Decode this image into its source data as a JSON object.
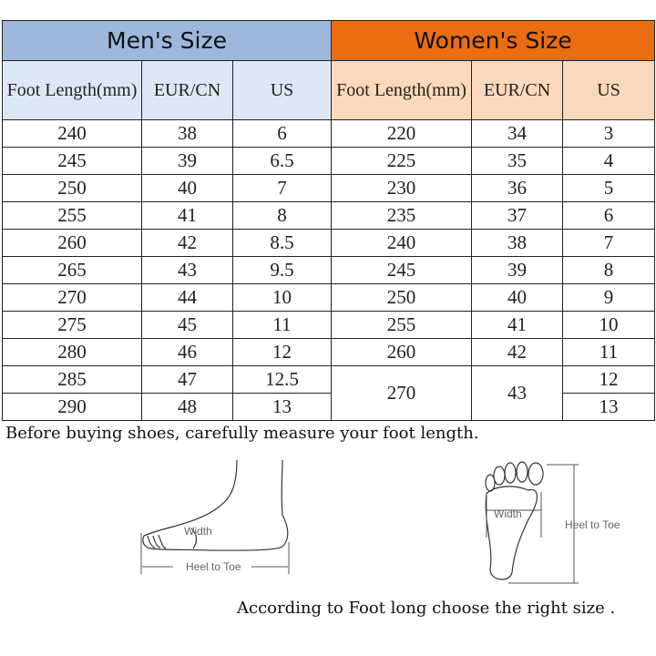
{
  "men": {
    "title": "Men's Size",
    "color": "#9db8dc",
    "headers": [
      "Foot Length(mm)",
      "EUR/CN",
      "US"
    ],
    "rows": [
      [
        "240",
        "38",
        "6"
      ],
      [
        "245",
        "39",
        "6.5"
      ],
      [
        "250",
        "40",
        "7"
      ],
      [
        "255",
        "41",
        "8"
      ],
      [
        "260",
        "42",
        "8.5"
      ],
      [
        "265",
        "43",
        "9.5"
      ],
      [
        "270",
        "44",
        "10"
      ],
      [
        "275",
        "45",
        "11"
      ],
      [
        "280",
        "46",
        "12"
      ],
      [
        "285",
        "47",
        "12.5"
      ],
      [
        "290",
        "48",
        "13"
      ]
    ]
  },
  "women": {
    "title": "Women's Size",
    "color": "#ea6d12",
    "headers": [
      "Foot Length(mm)",
      "EUR/CN",
      "US"
    ],
    "rows": [
      [
        "220",
        "34",
        "3"
      ],
      [
        "225",
        "35",
        "4"
      ],
      [
        "230",
        "36",
        "5"
      ],
      [
        "235",
        "37",
        "6"
      ],
      [
        "240",
        "38",
        "7"
      ],
      [
        "245",
        "39",
        "8"
      ],
      [
        "250",
        "40",
        "9"
      ],
      [
        "255",
        "41",
        "10"
      ],
      [
        "260",
        "42",
        "11"
      ],
      [
        "270",
        "43",
        "12"
      ],
      [
        "",
        "",
        "13"
      ]
    ]
  },
  "notes": {
    "measure": "Before buying shoes, carefully measure your foot length.",
    "choose": "According to Foot long choose the right size ."
  },
  "diagram": {
    "width": "Width",
    "heel_to_toe": "Heel to Toe"
  }
}
